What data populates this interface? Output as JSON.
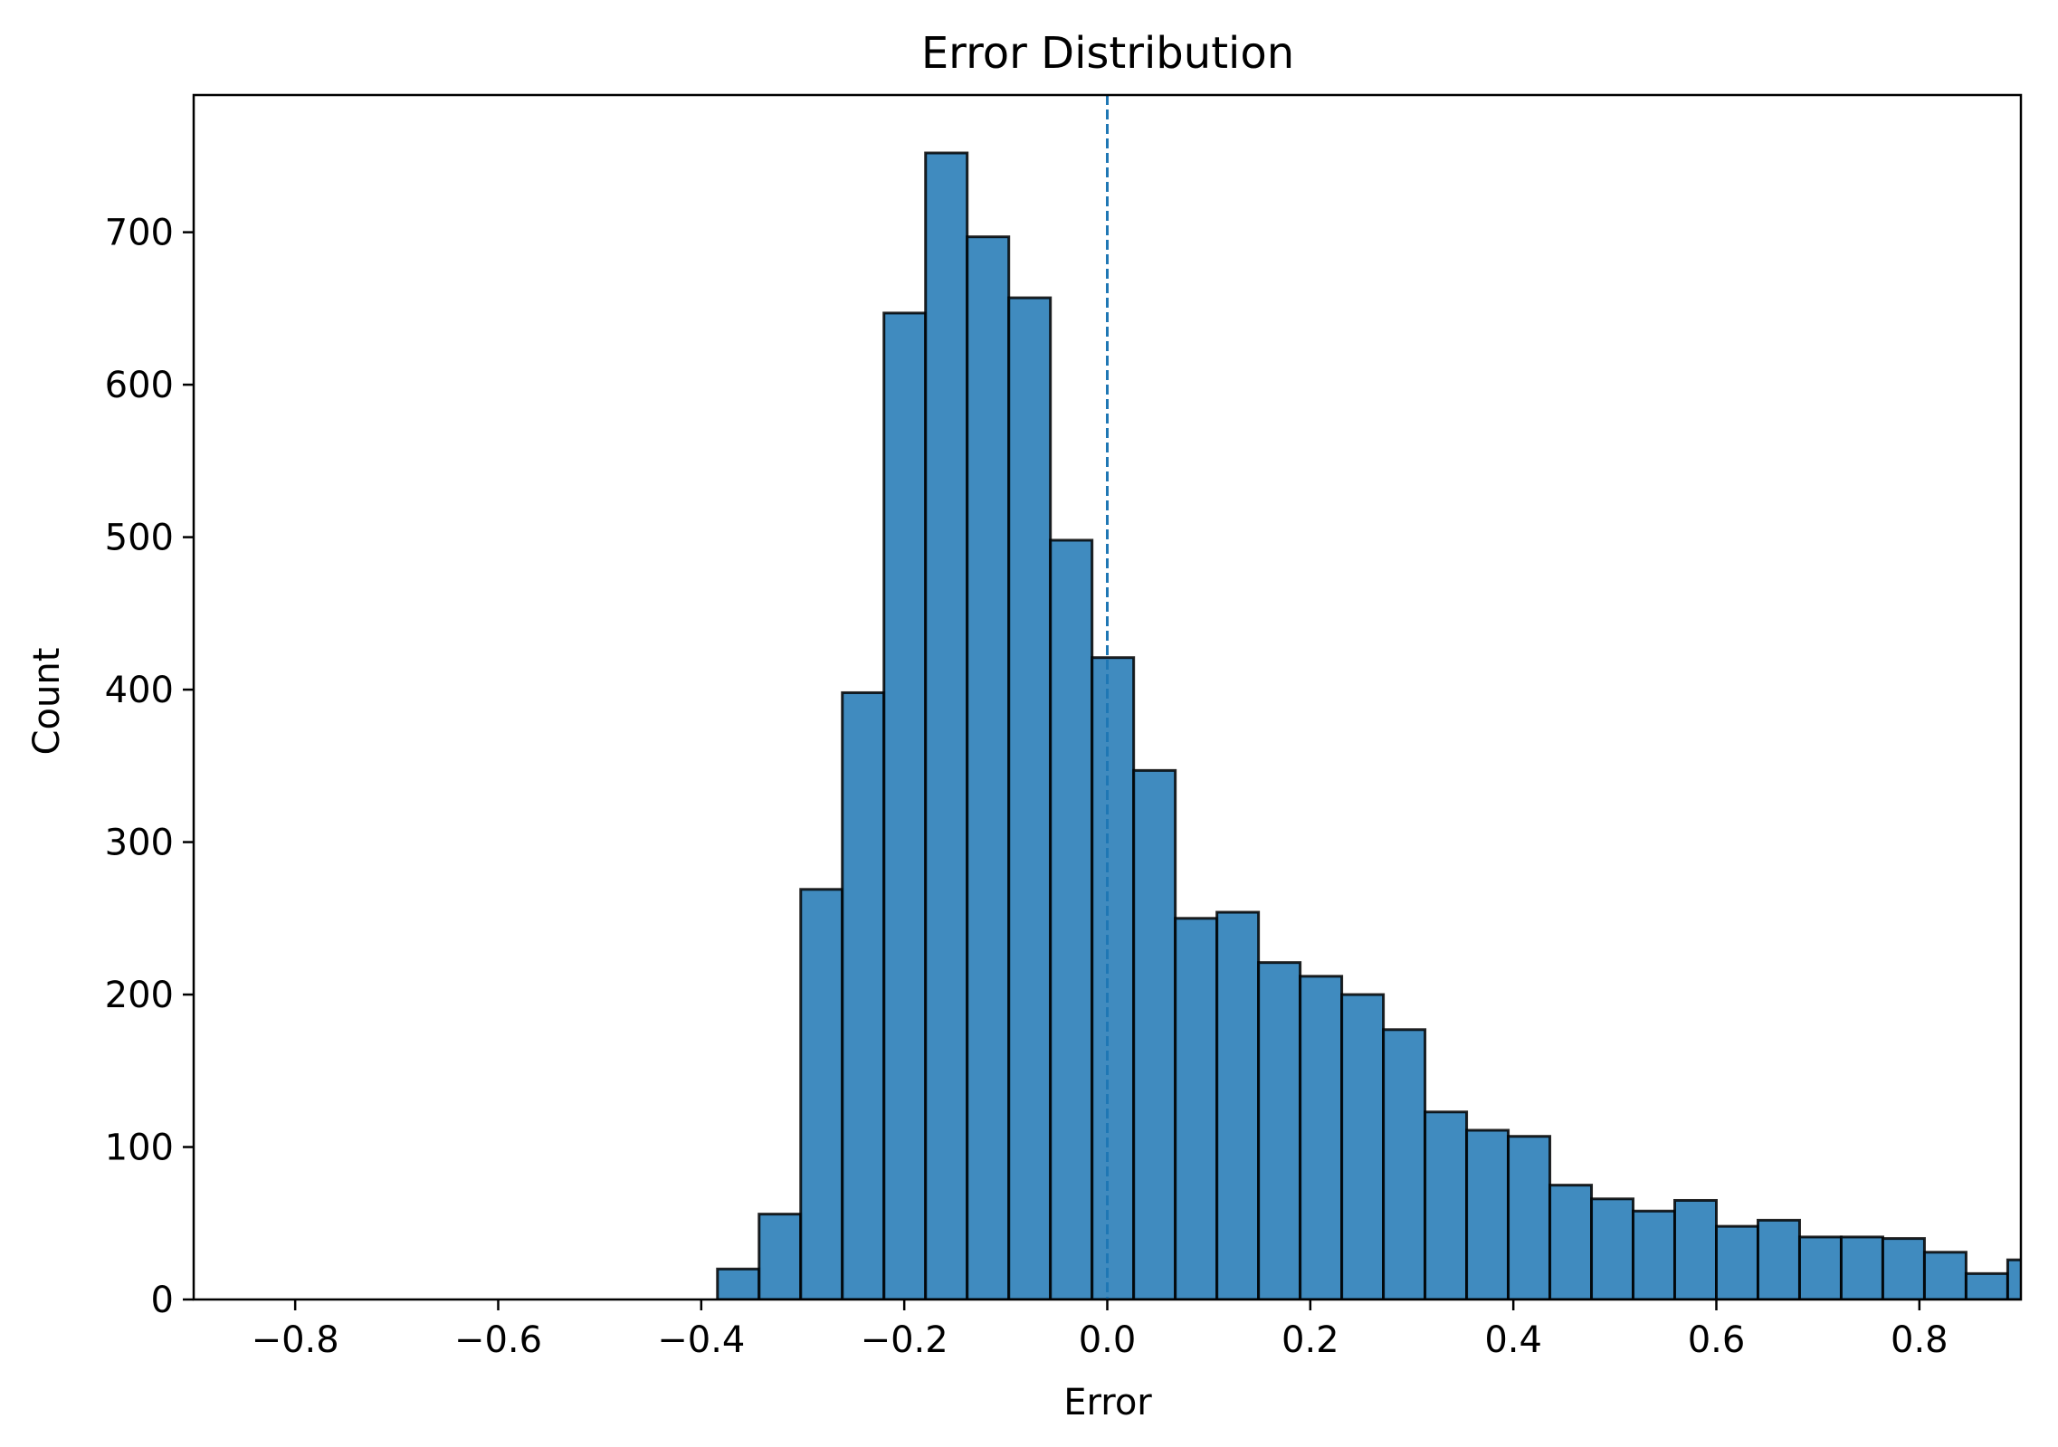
{
  "chart_data": {
    "type": "bar",
    "title": "Error Distribution",
    "xlabel": "Error",
    "ylabel": "Count",
    "xlim": [
      -0.9,
      0.9
    ],
    "ylim": [
      0,
      790
    ],
    "x_ticks": [
      -0.8,
      -0.6,
      -0.4,
      -0.2,
      0.0,
      0.2,
      0.4,
      0.6,
      0.8
    ],
    "x_tick_labels": [
      "−0.8",
      "−0.6",
      "−0.4",
      "−0.2",
      "0.0",
      "0.2",
      "0.4",
      "0.6",
      "0.8"
    ],
    "y_ticks": [
      0,
      100,
      200,
      300,
      400,
      500,
      600,
      700
    ],
    "y_tick_labels": [
      "0",
      "100",
      "200",
      "300",
      "400",
      "500",
      "600",
      "700"
    ],
    "bin_width": 0.041,
    "bin_edges_start": -0.384,
    "values": [
      20,
      56,
      269,
      398,
      647,
      752,
      697,
      657,
      498,
      421,
      347,
      250,
      254,
      221,
      212,
      200,
      177,
      123,
      111,
      107,
      75,
      66,
      58,
      65,
      48,
      52,
      41,
      41,
      40,
      31,
      17,
      26
    ],
    "reference_line": {
      "x": 0.0,
      "style": "dashed"
    },
    "grid": false,
    "bar_color": "#1f77b4",
    "bar_edge_color": "#000000",
    "ref_line_color": "#1f77b4"
  }
}
